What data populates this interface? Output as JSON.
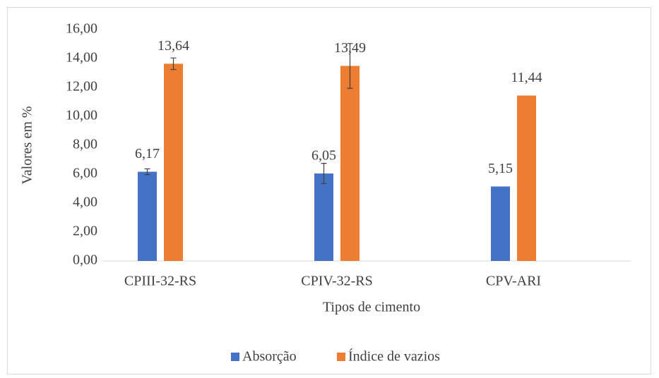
{
  "chart_data": {
    "type": "bar",
    "x_label": "Tipos de cimento",
    "y_label": "Valores em %",
    "categories": [
      "CPIII-32-RS",
      "CPIV-32-RS",
      "CPV-ARI"
    ],
    "series": [
      {
        "name": "Absorção",
        "color": "#4472c4",
        "values": [
          6.17,
          6.05,
          5.15
        ],
        "value_labels": [
          "6,17",
          "6,05",
          "5,15"
        ],
        "errors": [
          0.2,
          0.7,
          null
        ]
      },
      {
        "name": "Índice de vazios",
        "color": "#ed7d31",
        "values": [
          13.64,
          13.49,
          11.44
        ],
        "value_labels": [
          "13,64",
          "13,49",
          "11,44"
        ],
        "errors": [
          0.4,
          1.55,
          null
        ]
      }
    ],
    "ylim": [
      0,
      16
    ],
    "yticks": [
      {
        "value": 0,
        "label": "0,00"
      },
      {
        "value": 2,
        "label": "2,00"
      },
      {
        "value": 4,
        "label": "4,00"
      },
      {
        "value": 6,
        "label": "6,00"
      },
      {
        "value": 8,
        "label": "8,00"
      },
      {
        "value": 10,
        "label": "10,00"
      },
      {
        "value": 12,
        "label": "12,00"
      },
      {
        "value": 14,
        "label": "14,00"
      },
      {
        "value": 16,
        "label": "16,00"
      }
    ],
    "legend": "bottom"
  }
}
